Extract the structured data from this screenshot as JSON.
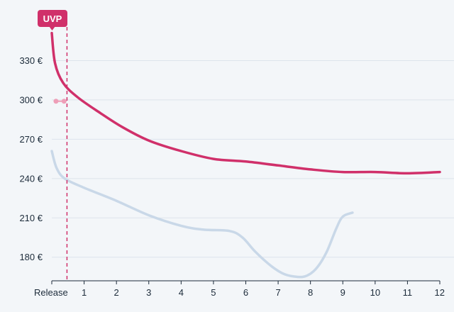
{
  "chart_data": {
    "type": "line",
    "title": "",
    "xlabel": "",
    "ylabel": "",
    "x_ticks": [
      {
        "value": 0,
        "label": "Release"
      },
      {
        "value": 1,
        "label": "1"
      },
      {
        "value": 2,
        "label": "2"
      },
      {
        "value": 3,
        "label": "3"
      },
      {
        "value": 4,
        "label": "4"
      },
      {
        "value": 5,
        "label": "5"
      },
      {
        "value": 6,
        "label": "6"
      },
      {
        "value": 7,
        "label": "7"
      },
      {
        "value": 8,
        "label": "8"
      },
      {
        "value": 9,
        "label": "9"
      },
      {
        "value": 10,
        "label": "10"
      },
      {
        "value": 11,
        "label": "11"
      },
      {
        "value": 12,
        "label": "12"
      }
    ],
    "y_ticks": [
      {
        "value": 180,
        "label": "180 €"
      },
      {
        "value": 210,
        "label": "210 €"
      },
      {
        "value": 240,
        "label": "240 €"
      },
      {
        "value": 270,
        "label": "270 €"
      },
      {
        "value": 300,
        "label": "300 €"
      },
      {
        "value": 330,
        "label": "330 €"
      }
    ],
    "xlim": [
      0,
      12
    ],
    "ylim": [
      162,
      360
    ],
    "grid": "horizontal",
    "series": [
      {
        "color": "#d0306a",
        "x": [
          0,
          0.1,
          0.35,
          0.8,
          1.5,
          2.2,
          3,
          4,
          5,
          6,
          7,
          8,
          9,
          10,
          11,
          12
        ],
        "y": [
          351,
          328,
          313,
          302,
          290,
          279,
          269,
          261,
          255,
          253,
          250,
          247,
          245,
          245,
          244,
          245
        ]
      },
      {
        "color": "#c9d8e8",
        "x": [
          0,
          0.15,
          0.4,
          1,
          2,
          3,
          4,
          4.7,
          5.5,
          5.9,
          6.3,
          6.8,
          7.2,
          7.6,
          7.9,
          8.2,
          8.5,
          8.8,
          9,
          9.3
        ],
        "y": [
          261,
          248,
          240,
          233,
          223,
          212,
          204,
          201,
          200,
          195,
          184,
          173,
          167,
          165,
          166,
          172,
          184,
          202,
          211,
          214
        ]
      }
    ],
    "dots": {
      "color": "#ee9fb8",
      "x": [
        0.13,
        0.38
      ],
      "y": [
        299,
        299
      ]
    },
    "marker": {
      "label": "UVP",
      "x": 0.47,
      "color": "#d0306a"
    }
  }
}
